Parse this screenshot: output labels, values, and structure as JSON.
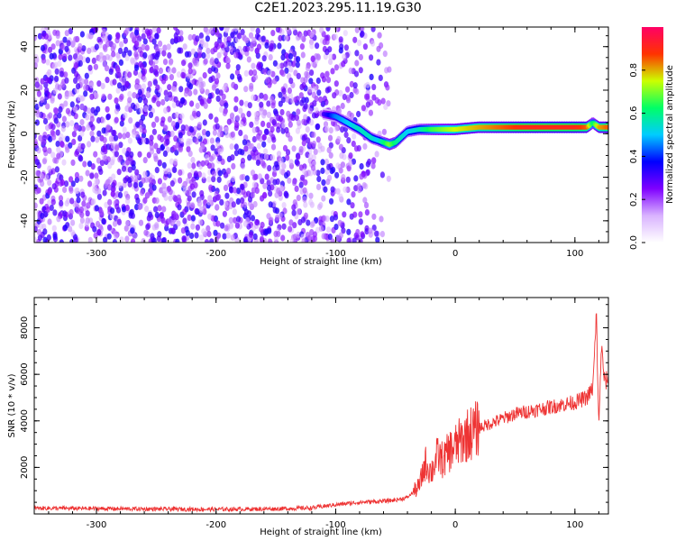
{
  "title": "C2E1.2023.295.11.19.G30",
  "colors": {
    "snr_line": "#ee3333",
    "axis": "#000000",
    "background": "#ffffff"
  },
  "chart_data": [
    {
      "type": "heatmap",
      "title": "",
      "xlabel": "Height of straight line (km)",
      "ylabel": "Frequency (Hz)",
      "xlim": [
        -352,
        128
      ],
      "ylim": [
        -50,
        49
      ],
      "x_ticks": [
        -300,
        -200,
        -100,
        0,
        100
      ],
      "y_ticks": [
        -40,
        -20,
        0,
        20,
        40
      ],
      "x_tick_labels": [
        "-300",
        "-200",
        "-100",
        "0",
        "100"
      ],
      "y_tick_labels": [
        "-40",
        "-20",
        "0",
        "20",
        "40"
      ],
      "colorbar": {
        "label": "Normalized spectral amplitude",
        "range": [
          0,
          1
        ],
        "ticks": [
          0.0,
          0.2,
          0.4,
          0.6,
          0.8
        ],
        "tick_labels": [
          "0.0",
          "0.2",
          "0.4",
          "0.6",
          "0.8"
        ],
        "colormap": [
          "#ffffff",
          "#d9b3ff",
          "#7f00ff",
          "#0000ff",
          "#00ccff",
          "#00ff66",
          "#ccff00",
          "#ff3300",
          "#ff0066"
        ]
      },
      "noise_region": {
        "x_range": [
          -352,
          -55
        ],
        "amplitude": [
          0.1,
          0.35
        ]
      },
      "signal_ridge": {
        "x": [
          -110,
          -100,
          -90,
          -80,
          -70,
          -65,
          -60,
          -55,
          -50,
          -40,
          -30,
          -20,
          -10,
          0,
          20,
          40,
          60,
          80,
          100,
          110,
          115,
          120,
          128
        ],
        "y": [
          9,
          8,
          5,
          2,
          -2,
          -3,
          -4,
          -5,
          -4,
          1,
          2,
          2,
          2,
          2,
          3,
          3,
          3,
          3,
          3,
          3,
          5,
          3,
          3
        ],
        "amplitude": [
          0.3,
          0.45,
          0.5,
          0.55,
          0.55,
          0.5,
          0.6,
          0.7,
          0.6,
          0.5,
          0.55,
          0.65,
          0.7,
          0.75,
          0.8,
          0.85,
          0.9,
          0.9,
          0.9,
          0.85,
          0.6,
          0.8,
          0.85
        ]
      }
    },
    {
      "type": "line",
      "title": "",
      "xlabel": "Height of straight line (km)",
      "ylabel": "SNR (10 * v/v)",
      "xlim": [
        -352,
        128
      ],
      "ylim": [
        0,
        9300
      ],
      "x_ticks": [
        -300,
        -200,
        -100,
        0,
        100
      ],
      "y_ticks": [
        2000,
        4000,
        6000,
        8000
      ],
      "x_tick_labels": [
        "-300",
        "-200",
        "-100",
        "0",
        "100"
      ],
      "y_tick_labels": [
        "2000",
        "4000",
        "6000",
        "8000"
      ],
      "series": [
        {
          "x": [
            -352,
            -300,
            -250,
            -200,
            -150,
            -120,
            -100,
            -80,
            -60,
            -50,
            -40,
            -30,
            -25,
            -20,
            -15,
            -10,
            -5,
            0,
            10,
            20,
            30,
            40,
            50,
            60,
            70,
            80,
            90,
            100,
            110,
            115,
            118,
            120,
            122,
            125,
            128
          ],
          "y": [
            250,
            230,
            210,
            200,
            220,
            260,
            400,
            500,
            550,
            600,
            700,
            1200,
            2200,
            1800,
            2500,
            2300,
            2700,
            2900,
            3400,
            3700,
            3900,
            4100,
            4300,
            4400,
            4500,
            4600,
            4700,
            4800,
            5000,
            5400,
            8500,
            3600,
            7200,
            5600,
            5900
          ]
        }
      ]
    }
  ]
}
